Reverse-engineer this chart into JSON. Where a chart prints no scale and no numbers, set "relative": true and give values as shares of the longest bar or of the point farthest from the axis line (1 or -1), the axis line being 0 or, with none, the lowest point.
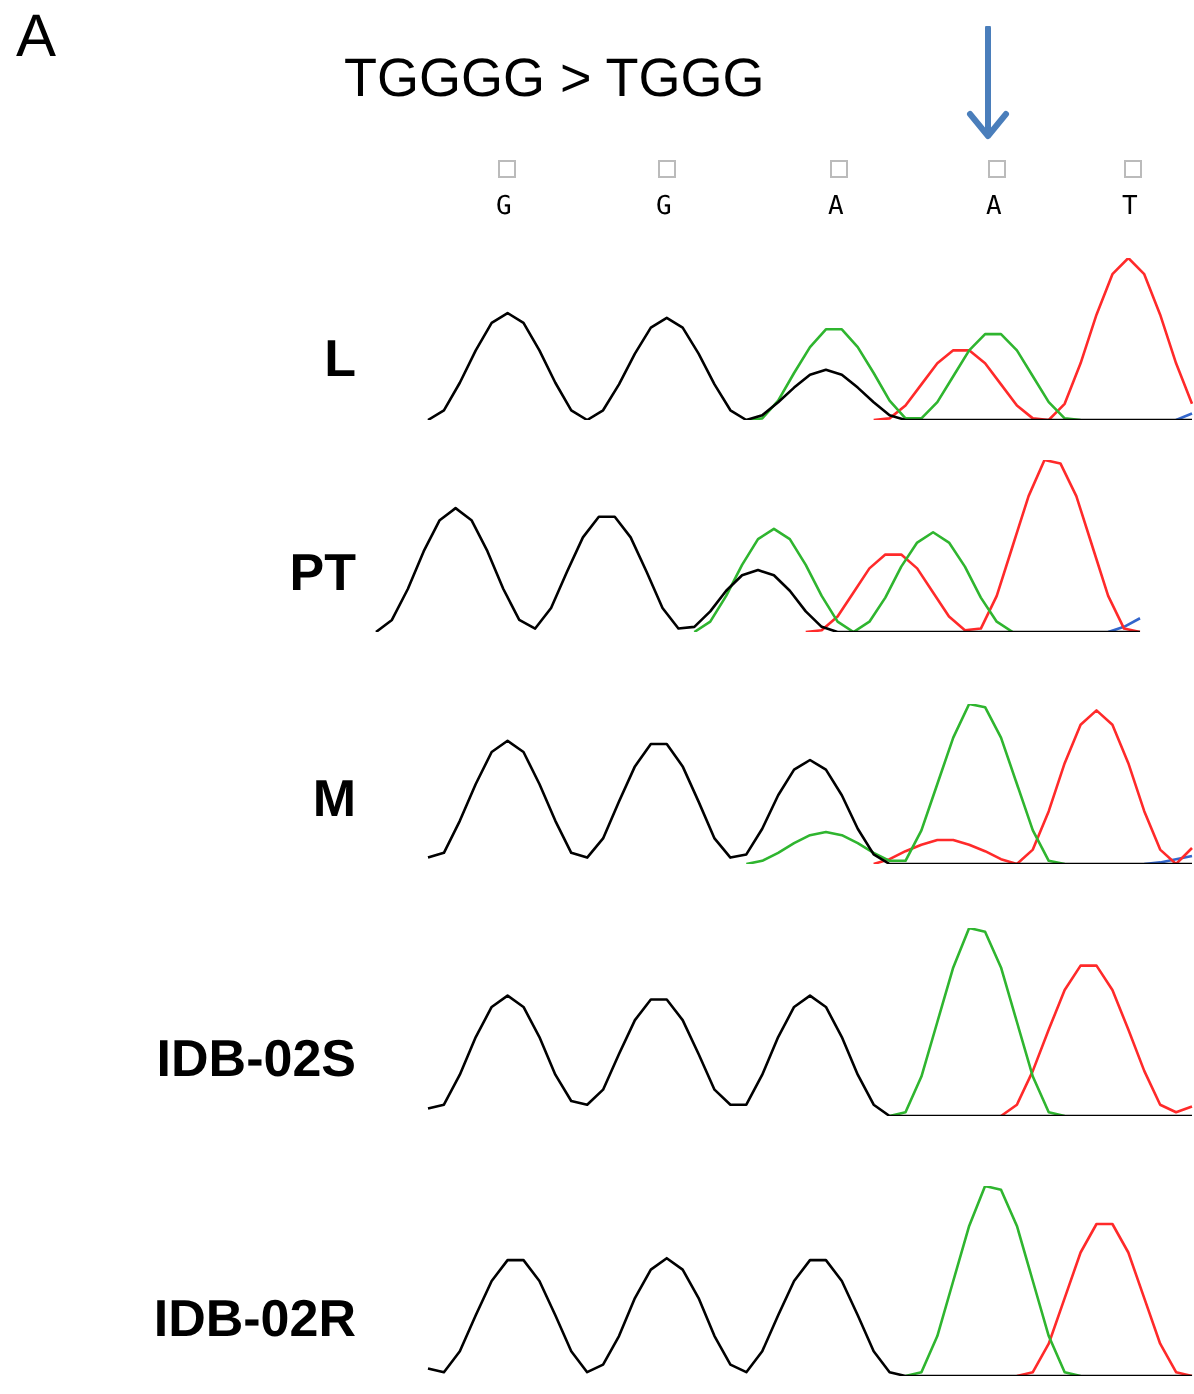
{
  "chart_data": [
    {
      "type": "line",
      "relative": true,
      "title": "L",
      "annotations": [
        "A",
        "TGGGG > TGGG",
        "G",
        "G",
        "A",
        "A",
        "T"
      ],
      "categories": [
        null,
        null,
        null,
        null,
        null,
        null,
        null,
        null,
        null,
        null,
        null,
        null,
        null,
        null,
        null,
        null,
        null,
        null,
        null,
        null,
        null,
        null,
        null,
        null,
        null,
        null,
        null,
        null,
        null,
        null,
        null,
        null,
        null,
        null,
        null,
        null,
        null,
        null,
        null,
        null,
        null,
        null,
        null,
        null,
        null,
        null,
        null,
        null,
        null
      ],
      "series": [
        {
          "color": "#000000",
          "values": [
            0,
            0.06,
            0.23,
            0.43,
            0.6,
            0.66,
            0.6,
            0.43,
            0.23,
            0.06,
            0,
            0.06,
            0.22,
            0.41,
            0.57,
            0.63,
            0.57,
            0.41,
            0.22,
            0.06,
            0,
            0.03,
            0.11,
            0.2,
            0.28,
            0.31,
            0.28,
            0.2,
            0.11,
            0.03,
            0,
            0,
            0,
            0,
            0,
            0,
            0,
            0,
            0,
            0,
            0,
            0,
            0,
            0,
            0,
            0,
            0,
            0,
            0
          ]
        },
        {
          "color": "#2fb52f",
          "values": [
            null,
            null,
            null,
            null,
            null,
            null,
            null,
            null,
            null,
            null,
            null,
            null,
            null,
            null,
            null,
            null,
            null,
            null,
            null,
            null,
            0,
            0.01,
            0.12,
            0.29,
            0.45,
            0.56,
            0.56,
            0.45,
            0.29,
            0.12,
            0.01,
            0.01,
            0.11,
            0.27,
            0.43,
            0.53,
            0.53,
            0.43,
            0.27,
            0.11,
            0.01,
            0,
            null,
            null,
            null,
            null,
            null,
            null,
            null
          ]
        },
        {
          "color": "#ff2a2a",
          "values": [
            null,
            null,
            null,
            null,
            null,
            null,
            null,
            null,
            null,
            null,
            null,
            null,
            null,
            null,
            null,
            null,
            null,
            null,
            null,
            null,
            null,
            null,
            null,
            null,
            null,
            null,
            null,
            null,
            0,
            0.01,
            0.09,
            0.22,
            0.35,
            0.43,
            0.43,
            0.35,
            0.22,
            0.09,
            0.01,
            0,
            0.1,
            0.35,
            0.65,
            0.9,
            1,
            0.9,
            0.65,
            0.35,
            0.1
          ]
        },
        {
          "color": "#3366cc",
          "values": [
            null,
            null,
            null,
            null,
            null,
            null,
            null,
            null,
            null,
            null,
            null,
            null,
            null,
            null,
            null,
            null,
            null,
            null,
            null,
            null,
            null,
            null,
            null,
            null,
            null,
            null,
            null,
            null,
            null,
            null,
            null,
            null,
            null,
            null,
            null,
            null,
            null,
            null,
            null,
            null,
            null,
            null,
            null,
            null,
            null,
            null,
            null,
            0,
            0.04
          ]
        }
      ]
    },
    {
      "type": "line",
      "relative": true,
      "title": "PT",
      "categories": [
        null,
        null,
        null,
        null,
        null,
        null,
        null,
        null,
        null,
        null,
        null,
        null,
        null,
        null,
        null,
        null,
        null,
        null,
        null,
        null,
        null,
        null,
        null,
        null,
        null,
        null,
        null,
        null,
        null,
        null,
        null,
        null,
        null,
        null,
        null,
        null,
        null,
        null,
        null,
        null,
        null,
        null,
        null,
        null,
        null,
        null,
        null,
        null,
        null
      ],
      "series": [
        {
          "color": "#000000",
          "values": [
            0,
            0.07,
            0.25,
            0.47,
            0.65,
            0.72,
            0.65,
            0.47,
            0.25,
            0.07,
            0.02,
            0.14,
            0.35,
            0.55,
            0.67,
            0.67,
            0.55,
            0.35,
            0.14,
            0.02,
            0.03,
            0.12,
            0.24,
            0.33,
            0.36,
            0.33,
            0.24,
            0.12,
            0.03,
            0,
            0,
            0,
            0,
            0,
            0,
            0,
            0,
            0,
            0,
            0,
            0,
            0,
            0,
            0,
            0,
            0,
            0,
            0,
            0
          ]
        },
        {
          "color": "#2fb52f",
          "values": [
            null,
            null,
            null,
            null,
            null,
            null,
            null,
            null,
            null,
            null,
            null,
            null,
            null,
            null,
            null,
            null,
            null,
            null,
            null,
            null,
            0,
            0.06,
            0.21,
            0.39,
            0.54,
            0.6,
            0.54,
            0.39,
            0.21,
            0.06,
            0,
            0.06,
            0.2,
            0.38,
            0.52,
            0.58,
            0.52,
            0.38,
            0.2,
            0.06,
            0,
            null,
            null,
            null,
            null,
            null,
            null,
            null,
            null
          ]
        },
        {
          "color": "#ff2a2a",
          "values": [
            null,
            null,
            null,
            null,
            null,
            null,
            null,
            null,
            null,
            null,
            null,
            null,
            null,
            null,
            null,
            null,
            null,
            null,
            null,
            null,
            null,
            null,
            null,
            null,
            null,
            null,
            null,
            0,
            0.01,
            0.09,
            0.23,
            0.37,
            0.45,
            0.45,
            0.37,
            0.23,
            0.09,
            0.01,
            0.02,
            0.21,
            0.5,
            0.79,
            1,
            0.98,
            0.79,
            0.5,
            0.21,
            0.02,
            0
          ]
        },
        {
          "color": "#3366cc",
          "values": [
            null,
            null,
            null,
            null,
            null,
            null,
            null,
            null,
            null,
            null,
            null,
            null,
            null,
            null,
            null,
            null,
            null,
            null,
            null,
            null,
            null,
            null,
            null,
            null,
            null,
            null,
            null,
            null,
            null,
            null,
            null,
            null,
            null,
            null,
            null,
            null,
            null,
            null,
            null,
            null,
            null,
            null,
            null,
            null,
            null,
            null,
            0,
            0.03,
            0.08
          ]
        }
      ]
    },
    {
      "type": "line",
      "relative": true,
      "title": "M",
      "categories": [
        null,
        null,
        null,
        null,
        null,
        null,
        null,
        null,
        null,
        null,
        null,
        null,
        null,
        null,
        null,
        null,
        null,
        null,
        null,
        null,
        null,
        null,
        null,
        null,
        null,
        null,
        null,
        null,
        null,
        null,
        null,
        null,
        null,
        null,
        null,
        null,
        null,
        null,
        null,
        null,
        null,
        null,
        null,
        null,
        null,
        null,
        null,
        null,
        null
      ],
      "series": [
        {
          "color": "#000000",
          "values": [
            0.04,
            0.07,
            0.27,
            0.5,
            0.7,
            0.77,
            0.7,
            0.5,
            0.27,
            0.07,
            0.04,
            0.16,
            0.39,
            0.61,
            0.75,
            0.75,
            0.61,
            0.39,
            0.16,
            0.04,
            0.06,
            0.22,
            0.43,
            0.59,
            0.65,
            0.59,
            0.43,
            0.22,
            0.06,
            0,
            0,
            0,
            0,
            0,
            0,
            0,
            0,
            0,
            0,
            0,
            0,
            0,
            0,
            0,
            0,
            0,
            0,
            0,
            0
          ]
        },
        {
          "color": "#2fb52f",
          "values": [
            null,
            null,
            null,
            null,
            null,
            null,
            null,
            null,
            null,
            null,
            null,
            null,
            null,
            null,
            null,
            null,
            null,
            null,
            null,
            null,
            0,
            0.02,
            0.07,
            0.13,
            0.18,
            0.2,
            0.18,
            0.13,
            0.07,
            0.02,
            0.02,
            0.21,
            0.5,
            0.79,
            1,
            0.98,
            0.79,
            0.5,
            0.21,
            0.02,
            0,
            null,
            null,
            null,
            null,
            null,
            null,
            null,
            null
          ]
        },
        {
          "color": "#ff2a2a",
          "values": [
            null,
            null,
            null,
            null,
            null,
            null,
            null,
            null,
            null,
            null,
            null,
            null,
            null,
            null,
            null,
            null,
            null,
            null,
            null,
            null,
            null,
            null,
            null,
            null,
            null,
            null,
            null,
            null,
            0,
            0.03,
            0.08,
            0.12,
            0.15,
            0.15,
            0.12,
            0.08,
            0.03,
            0,
            0.09,
            0.33,
            0.63,
            0.87,
            0.96,
            0.87,
            0.63,
            0.33,
            0.09,
            0,
            0.1
          ]
        },
        {
          "color": "#3366cc",
          "values": [
            null,
            null,
            null,
            null,
            null,
            null,
            null,
            null,
            null,
            null,
            null,
            null,
            null,
            null,
            null,
            null,
            null,
            null,
            null,
            null,
            null,
            null,
            null,
            null,
            null,
            null,
            null,
            null,
            null,
            null,
            null,
            null,
            null,
            null,
            null,
            null,
            null,
            null,
            null,
            null,
            null,
            null,
            null,
            null,
            null,
            0,
            0.01,
            0.03,
            0.05
          ]
        }
      ]
    },
    {
      "type": "line",
      "relative": true,
      "title": "IDB-02S",
      "categories": [
        null,
        null,
        null,
        null,
        null,
        null,
        null,
        null,
        null,
        null,
        null,
        null,
        null,
        null,
        null,
        null,
        null,
        null,
        null,
        null,
        null,
        null,
        null,
        null,
        null,
        null,
        null,
        null,
        null,
        null,
        null,
        null,
        null,
        null,
        null,
        null,
        null,
        null,
        null,
        null,
        null,
        null,
        null,
        null,
        null,
        null,
        null,
        null,
        null
      ],
      "series": [
        {
          "color": "#000000",
          "values": [
            0.04,
            0.06,
            0.22,
            0.42,
            0.58,
            0.64,
            0.58,
            0.42,
            0.22,
            0.08,
            0.06,
            0.14,
            0.33,
            0.51,
            0.62,
            0.62,
            0.51,
            0.33,
            0.14,
            0.06,
            0.06,
            0.22,
            0.42,
            0.58,
            0.64,
            0.58,
            0.42,
            0.22,
            0.06,
            0,
            0,
            0,
            0,
            0,
            0,
            0,
            0,
            0,
            0,
            0,
            0,
            0,
            0,
            0,
            0,
            0,
            0,
            0,
            0
          ]
        },
        {
          "color": "#2fb52f",
          "values": [
            null,
            null,
            null,
            null,
            null,
            null,
            null,
            null,
            null,
            null,
            null,
            null,
            null,
            null,
            null,
            null,
            null,
            null,
            null,
            null,
            null,
            null,
            null,
            null,
            null,
            null,
            null,
            null,
            null,
            0,
            0.02,
            0.21,
            0.5,
            0.79,
            1,
            0.98,
            0.79,
            0.5,
            0.21,
            0.02,
            0,
            null,
            null,
            null,
            null,
            null,
            null,
            null,
            null
          ]
        },
        {
          "color": "#ff2a2a",
          "values": [
            null,
            null,
            null,
            null,
            null,
            null,
            null,
            null,
            null,
            null,
            null,
            null,
            null,
            null,
            null,
            null,
            null,
            null,
            null,
            null,
            null,
            null,
            null,
            null,
            null,
            null,
            null,
            null,
            null,
            null,
            null,
            null,
            null,
            null,
            null,
            null,
            0,
            0.06,
            0.24,
            0.46,
            0.67,
            0.8,
            0.8,
            0.67,
            0.46,
            0.24,
            0.06,
            0.02,
            0.05
          ]
        }
      ]
    },
    {
      "type": "line",
      "relative": true,
      "title": "IDB-02R",
      "categories": [
        null,
        null,
        null,
        null,
        null,
        null,
        null,
        null,
        null,
        null,
        null,
        null,
        null,
        null,
        null,
        null,
        null,
        null,
        null,
        null,
        null,
        null,
        null,
        null,
        null,
        null,
        null,
        null,
        null,
        null,
        null,
        null,
        null,
        null,
        null,
        null,
        null,
        null,
        null,
        null,
        null,
        null,
        null,
        null,
        null,
        null,
        null,
        null,
        null
      ],
      "series": [
        {
          "color": "#000000",
          "values": [
            0.04,
            0.02,
            0.13,
            0.32,
            0.5,
            0.61,
            0.61,
            0.5,
            0.32,
            0.13,
            0.02,
            0.06,
            0.21,
            0.41,
            0.56,
            0.62,
            0.56,
            0.41,
            0.21,
            0.06,
            0.02,
            0.13,
            0.32,
            0.5,
            0.61,
            0.61,
            0.5,
            0.32,
            0.13,
            0.02,
            0,
            0,
            0,
            0,
            0,
            0,
            0,
            0,
            0,
            0,
            0,
            0,
            0,
            0,
            0,
            0,
            0,
            0,
            0
          ]
        },
        {
          "color": "#2fb52f",
          "values": [
            null,
            null,
            null,
            null,
            null,
            null,
            null,
            null,
            null,
            null,
            null,
            null,
            null,
            null,
            null,
            null,
            null,
            null,
            null,
            null,
            null,
            null,
            null,
            null,
            null,
            null,
            null,
            null,
            null,
            null,
            0,
            0.02,
            0.21,
            0.5,
            0.79,
            1,
            0.98,
            0.79,
            0.5,
            0.21,
            0.02,
            0,
            null,
            null,
            null,
            null,
            null,
            null,
            null
          ]
        },
        {
          "color": "#ff2a2a",
          "values": [
            null,
            null,
            null,
            null,
            null,
            null,
            null,
            null,
            null,
            null,
            null,
            null,
            null,
            null,
            null,
            null,
            null,
            null,
            null,
            null,
            null,
            null,
            null,
            null,
            null,
            null,
            null,
            null,
            null,
            null,
            null,
            null,
            null,
            null,
            null,
            null,
            null,
            0,
            0.02,
            0.17,
            0.41,
            0.65,
            0.8,
            0.8,
            0.65,
            0.41,
            0.17,
            0.02,
            0
          ]
        }
      ]
    }
  ]
}
